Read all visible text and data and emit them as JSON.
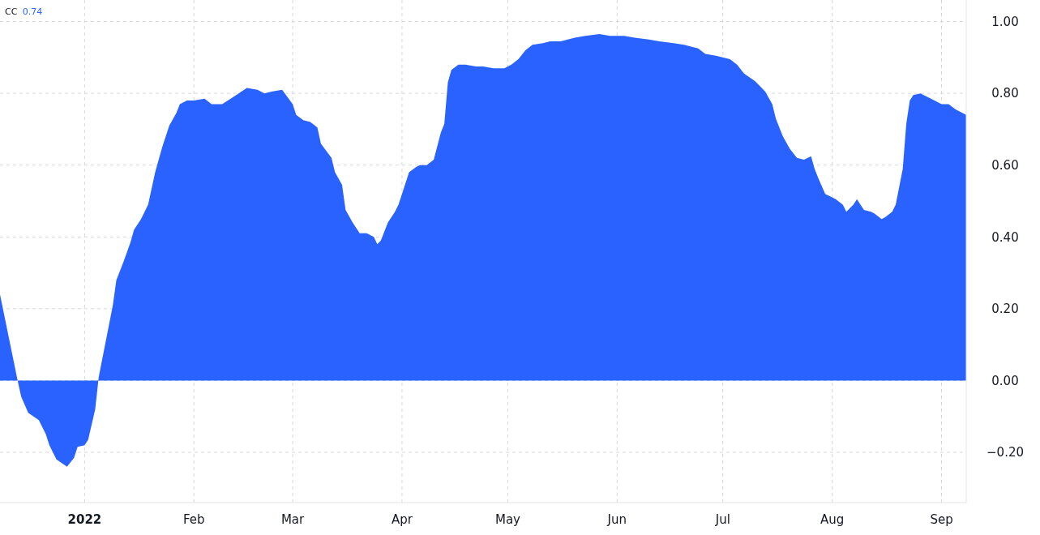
{
  "chart_data": {
    "type": "area",
    "legend": "top left",
    "grid": true,
    "annotations": [
      "0.74"
    ],
    "xlim": [
      "2021-12-08",
      "2022-09-08"
    ],
    "xticks": [
      {
        "value": "2022-01-01",
        "label": "2022"
      },
      {
        "value": "2022-02-01",
        "label": "Feb"
      },
      {
        "value": "2022-03-01",
        "label": "Mar"
      },
      {
        "value": "2022-04-01",
        "label": "Apr"
      },
      {
        "value": "2022-05-01",
        "label": "May"
      },
      {
        "value": "2022-06-01",
        "label": "Jun"
      },
      {
        "value": "2022-07-01",
        "label": "Jul"
      },
      {
        "value": "2022-08-01",
        "label": "Aug"
      },
      {
        "value": "2022-09-01",
        "label": "Sep"
      }
    ],
    "ylim": [
      -0.34,
      1.06
    ],
    "yticks": [
      {
        "value": -0.2,
        "label": "−0.20"
      },
      {
        "value": 0,
        "label": "0.00"
      },
      {
        "value": 0.2,
        "label": "0.20"
      },
      {
        "value": 0.4,
        "label": "0.40"
      },
      {
        "value": 0.6,
        "label": "0.60"
      },
      {
        "value": 0.8,
        "label": "0.80"
      },
      {
        "value": 1,
        "label": "1.00"
      }
    ],
    "series": [
      {
        "name": "CC",
        "color": "#2962ff",
        "x": [
          "2021-12-08",
          "2021-12-13",
          "2021-12-14",
          "2021-12-16",
          "2021-12-19",
          "2021-12-21",
          "2021-12-22",
          "2021-12-24",
          "2021-12-27",
          "2021-12-29",
          "2021-12-30",
          "2022-01-01",
          "2022-01-02",
          "2022-01-04",
          "2022-01-05",
          "2022-01-07",
          "2022-01-09",
          "2022-01-10",
          "2022-01-12",
          "2022-01-14",
          "2022-01-15",
          "2022-01-17",
          "2022-01-19",
          "2022-01-21",
          "2022-01-23",
          "2022-01-25",
          "2022-01-27",
          "2022-01-28",
          "2022-01-30",
          "2022-02-01",
          "2022-02-04",
          "2022-02-06",
          "2022-02-09",
          "2022-02-13",
          "2022-02-16",
          "2022-02-19",
          "2022-02-21",
          "2022-02-23",
          "2022-02-26",
          "2022-03-01",
          "2022-03-02",
          "2022-03-04",
          "2022-03-06",
          "2022-03-08",
          "2022-03-09",
          "2022-03-12",
          "2022-03-13",
          "2022-03-15",
          "2022-03-16",
          "2022-03-18",
          "2022-03-20",
          "2022-03-22",
          "2022-03-24",
          "2022-03-25",
          "2022-03-26",
          "2022-03-28",
          "2022-03-30",
          "2022-03-31",
          "2022-04-01",
          "2022-04-03",
          "2022-04-05",
          "2022-04-06",
          "2022-04-08",
          "2022-04-10",
          "2022-04-12",
          "2022-04-13",
          "2022-04-14",
          "2022-04-15",
          "2022-04-17",
          "2022-04-19",
          "2022-04-22",
          "2022-04-24",
          "2022-04-27",
          "2022-04-30",
          "2022-05-02",
          "2022-05-04",
          "2022-05-06",
          "2022-05-08",
          "2022-05-11",
          "2022-05-13",
          "2022-05-16",
          "2022-05-20",
          "2022-05-23",
          "2022-05-27",
          "2022-05-30",
          "2022-06-03",
          "2022-06-06",
          "2022-06-10",
          "2022-06-13",
          "2022-06-17",
          "2022-06-20",
          "2022-06-24",
          "2022-06-26",
          "2022-06-29",
          "2022-07-03",
          "2022-07-05",
          "2022-07-07",
          "2022-07-10",
          "2022-07-11",
          "2022-07-13",
          "2022-07-15",
          "2022-07-16",
          "2022-07-18",
          "2022-07-20",
          "2022-07-22",
          "2022-07-24",
          "2022-07-26",
          "2022-07-27",
          "2022-07-28",
          "2022-07-30",
          "2022-08-01",
          "2022-08-02",
          "2022-08-04",
          "2022-08-05",
          "2022-08-07",
          "2022-08-08",
          "2022-08-10",
          "2022-08-12",
          "2022-08-13",
          "2022-08-15",
          "2022-08-16",
          "2022-08-18",
          "2022-08-19",
          "2022-08-21",
          "2022-08-22",
          "2022-08-23",
          "2022-08-24",
          "2022-08-26",
          "2022-08-29",
          "2022-08-30",
          "2022-09-01",
          "2022-09-03",
          "2022-09-05",
          "2022-09-07",
          "2022-09-08"
        ],
        "values": [
          0.24,
          0.0,
          -0.045,
          -0.09,
          -0.11,
          -0.15,
          -0.18,
          -0.22,
          -0.24,
          -0.215,
          -0.185,
          -0.18,
          -0.165,
          -0.08,
          0.01,
          0.11,
          0.21,
          0.28,
          0.33,
          0.385,
          0.42,
          0.45,
          0.49,
          0.58,
          0.65,
          0.71,
          0.745,
          0.77,
          0.78,
          0.78,
          0.785,
          0.77,
          0.77,
          0.795,
          0.815,
          0.81,
          0.8,
          0.805,
          0.81,
          0.77,
          0.74,
          0.725,
          0.72,
          0.705,
          0.66,
          0.62,
          0.58,
          0.545,
          0.475,
          0.44,
          0.41,
          0.41,
          0.4,
          0.38,
          0.39,
          0.44,
          0.47,
          0.49,
          0.52,
          0.58,
          0.595,
          0.6,
          0.6,
          0.615,
          0.69,
          0.715,
          0.83,
          0.865,
          0.88,
          0.88,
          0.875,
          0.875,
          0.87,
          0.87,
          0.88,
          0.895,
          0.92,
          0.935,
          0.94,
          0.945,
          0.945,
          0.955,
          0.96,
          0.965,
          0.96,
          0.96,
          0.955,
          0.95,
          0.945,
          0.94,
          0.935,
          0.925,
          0.91,
          0.905,
          0.895,
          0.88,
          0.855,
          0.835,
          0.825,
          0.805,
          0.77,
          0.73,
          0.68,
          0.645,
          0.62,
          0.615,
          0.625,
          0.59,
          0.565,
          0.52,
          0.51,
          0.505,
          0.49,
          0.47,
          0.49,
          0.505,
          0.475,
          0.47,
          0.465,
          0.45,
          0.455,
          0.47,
          0.49,
          0.59,
          0.715,
          0.78,
          0.795,
          0.8,
          0.785,
          0.78,
          0.77,
          0.77,
          0.755,
          0.745,
          0.74
        ]
      }
    ]
  }
}
